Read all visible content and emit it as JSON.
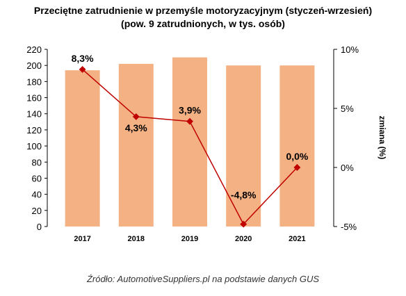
{
  "chart_data": {
    "type": "bar+line",
    "title": "Przeciętne zatrudnienie w przemyśle motoryzacyjnym (styczeń-wrzesień)",
    "subtitle": "(pow. 9 zatrudnionych, w tys. osób)",
    "categories": [
      "2017",
      "2018",
      "2019",
      "2020",
      "2021"
    ],
    "bar_series": {
      "values": [
        194,
        202,
        210,
        200,
        200
      ],
      "color": "#F4B183"
    },
    "line_series": {
      "values": [
        8.3,
        4.3,
        3.9,
        -4.8,
        0.0
      ],
      "labels": [
        "8,3%",
        "4,3%",
        "3,9%",
        "-4,8%",
        "0,0%"
      ],
      "color": "#C00000"
    },
    "y_left": {
      "min": 0,
      "max": 220,
      "ticks": [
        "0",
        "20",
        "40",
        "60",
        "80",
        "100",
        "120",
        "140",
        "160",
        "180",
        "200",
        "220"
      ]
    },
    "y_right": {
      "label": "zmiana (%)",
      "min": -5,
      "max": 10,
      "ticks": [
        "-5%",
        "0%",
        "5%",
        "10%"
      ]
    },
    "grid": false,
    "legend": "none"
  },
  "source": "Źródło: AutomotiveSuppliers.pl na podstawie danych GUS"
}
